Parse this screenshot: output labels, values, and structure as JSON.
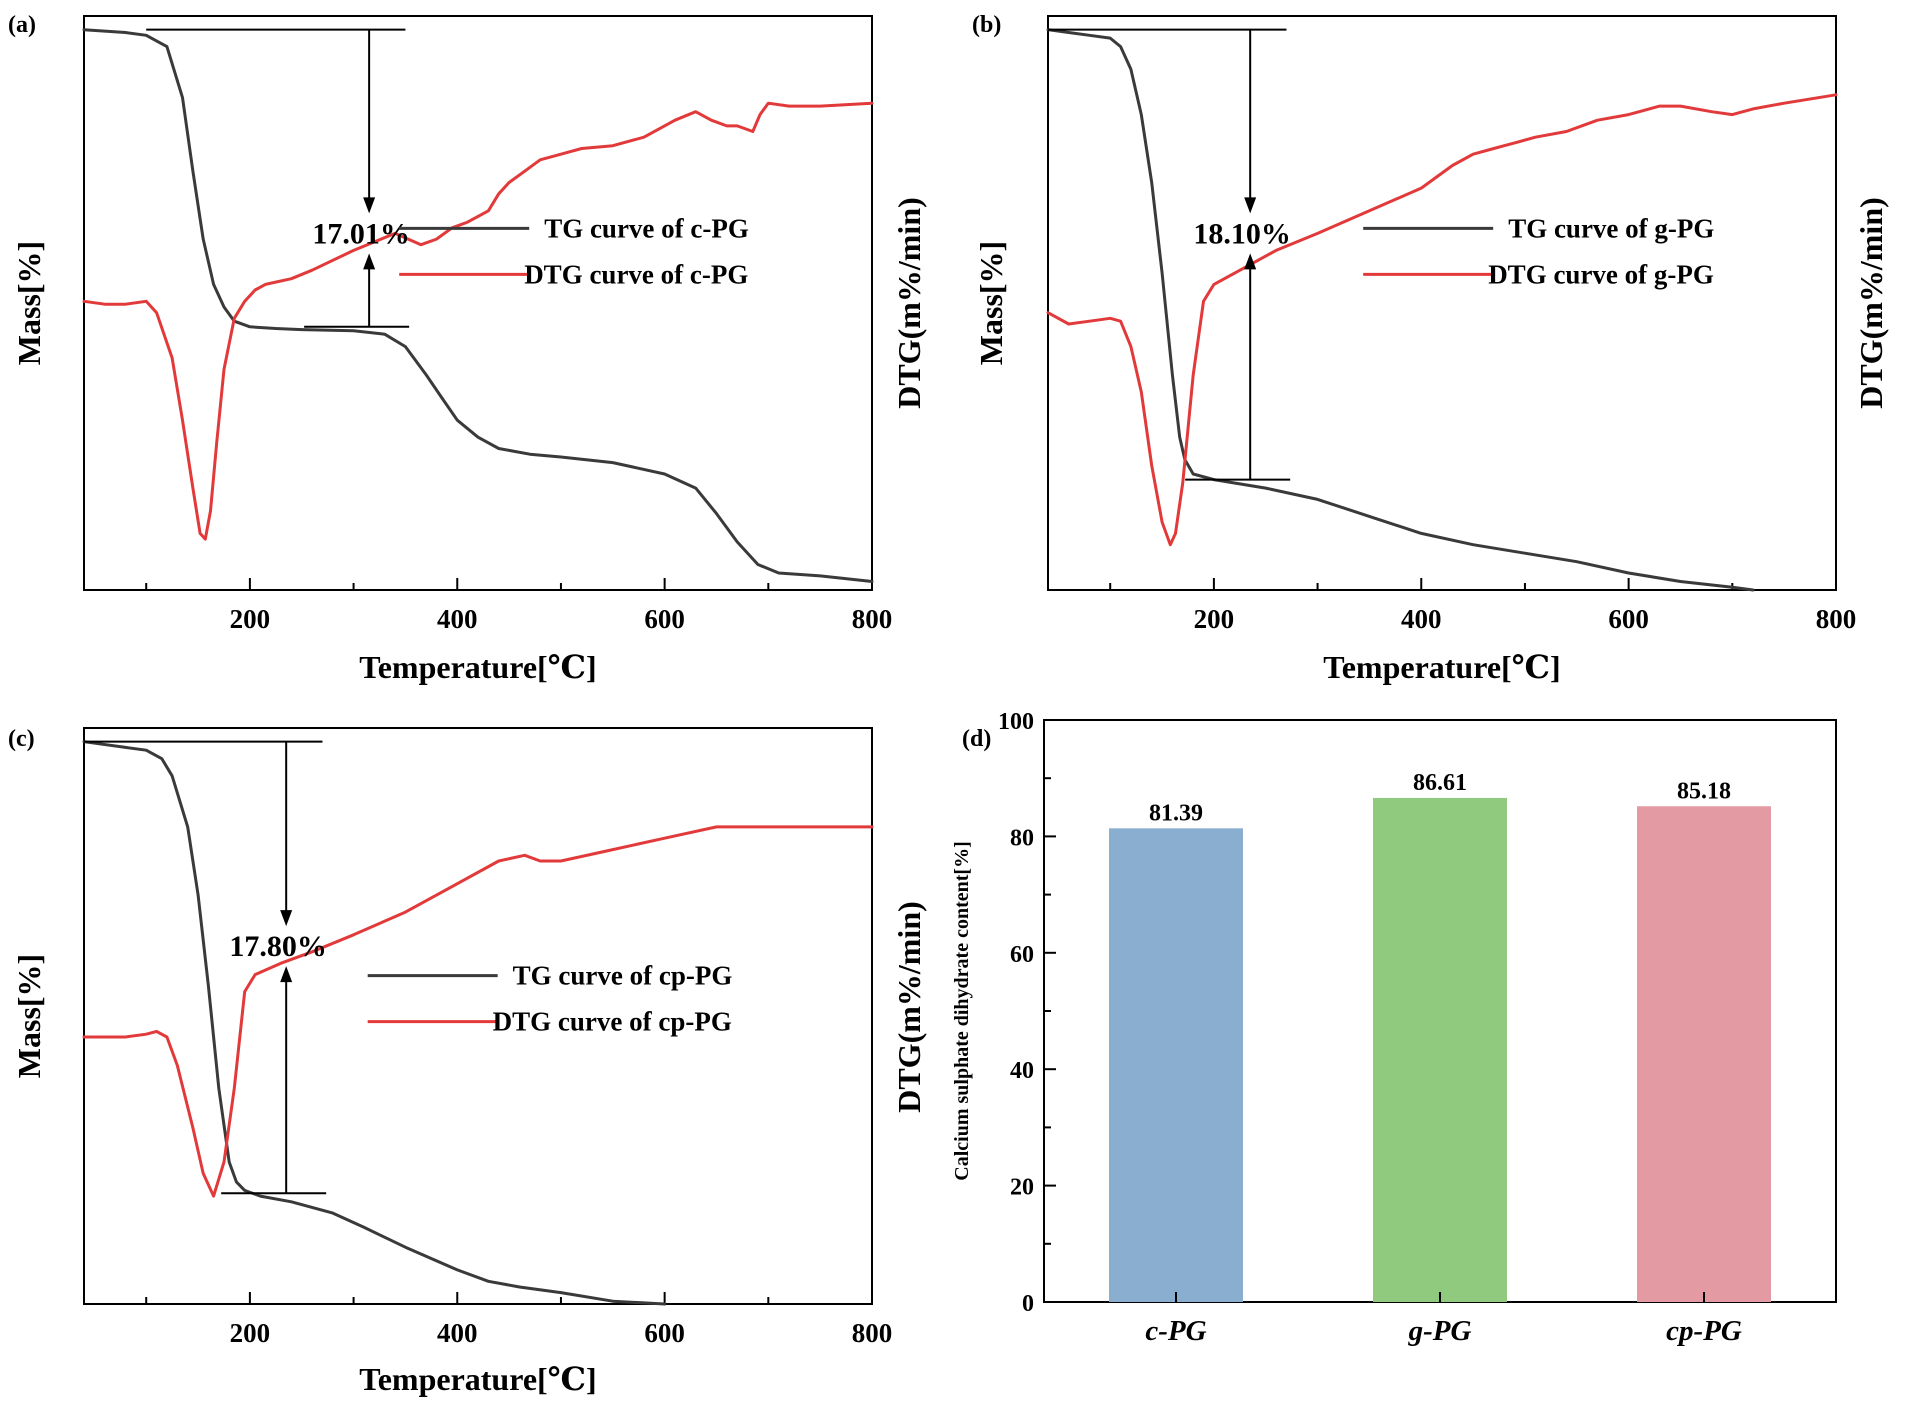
{
  "colors": {
    "tg": "#3a3a3a",
    "dtg": "#e23a3a",
    "bar_c": "#8aaed0",
    "bar_g": "#8fca7e",
    "bar_cp": "#e49aa3",
    "axis": "#000000"
  },
  "chart_data": [
    {
      "panel": "(a)",
      "type": "line",
      "xlabel": "Temperature[℃]",
      "ylabel_left": "Mass[%]",
      "ylabel_right": "DTG(m%/min)",
      "xlim": [
        40,
        800
      ],
      "ylim": [
        0,
        1
      ],
      "x_ticks": [
        200,
        400,
        600,
        800
      ],
      "annotation": "17.01%",
      "step": {
        "x": 315,
        "y_top": 0.99,
        "y_bottom": 0.465,
        "label_y": 0.63,
        "line_start": 100,
        "line_end": 350
      },
      "series": [
        {
          "name": "TG curve of c-PG",
          "color": "tg",
          "x": [
            40,
            80,
            100,
            120,
            135,
            145,
            155,
            165,
            175,
            185,
            200,
            225,
            250,
            300,
            330,
            350,
            370,
            385,
            400,
            420,
            440,
            470,
            500,
            550,
            600,
            630,
            650,
            670,
            690,
            710,
            750,
            800
          ],
          "y": [
            0.99,
            0.985,
            0.98,
            0.96,
            0.87,
            0.74,
            0.62,
            0.54,
            0.5,
            0.475,
            0.465,
            0.462,
            0.46,
            0.458,
            0.452,
            0.43,
            0.38,
            0.34,
            0.3,
            0.27,
            0.25,
            0.24,
            0.235,
            0.225,
            0.205,
            0.18,
            0.135,
            0.085,
            0.045,
            0.03,
            0.025,
            0.015
          ]
        },
        {
          "name": "DTG curve of c-PG",
          "color": "dtg",
          "x": [
            40,
            60,
            80,
            100,
            110,
            125,
            135,
            145,
            152,
            157,
            162,
            168,
            175,
            185,
            195,
            205,
            215,
            240,
            260,
            300,
            340,
            365,
            380,
            395,
            410,
            430,
            440,
            450,
            465,
            480,
            500,
            520,
            550,
            580,
            610,
            630,
            645,
            660,
            670,
            685,
            692,
            700,
            720,
            750,
            800
          ],
          "y": [
            0.51,
            0.505,
            0.505,
            0.51,
            0.49,
            0.41,
            0.3,
            0.18,
            0.1,
            0.09,
            0.14,
            0.26,
            0.39,
            0.48,
            0.51,
            0.53,
            0.54,
            0.55,
            0.565,
            0.6,
            0.63,
            0.61,
            0.62,
            0.64,
            0.65,
            0.67,
            0.7,
            0.72,
            0.74,
            0.76,
            0.77,
            0.78,
            0.785,
            0.8,
            0.83,
            0.845,
            0.83,
            0.82,
            0.82,
            0.81,
            0.84,
            0.86,
            0.855,
            0.855,
            0.86
          ]
        }
      ]
    },
    {
      "panel": "(b)",
      "type": "line",
      "xlabel": "Temperature[℃]",
      "ylabel_left": "Mass[%]",
      "ylabel_right": "DTG(m%/min)",
      "xlim": [
        40,
        800
      ],
      "ylim": [
        0,
        1
      ],
      "x_ticks": [
        200,
        400,
        600,
        800
      ],
      "annotation": "18.10%",
      "step": {
        "x": 235,
        "y_top": 0.99,
        "y_bottom": 0.195,
        "label_y": 0.63,
        "line_start": 40,
        "line_end": 270
      },
      "series": [
        {
          "name": "TG curve of g-PG",
          "color": "tg",
          "x": [
            40,
            60,
            80,
            100,
            110,
            120,
            130,
            140,
            150,
            160,
            167,
            172,
            180,
            200,
            250,
            300,
            350,
            400,
            450,
            500,
            550,
            600,
            650,
            700,
            720
          ],
          "y": [
            0.99,
            0.985,
            0.98,
            0.975,
            0.96,
            0.92,
            0.84,
            0.72,
            0.56,
            0.38,
            0.27,
            0.23,
            0.205,
            0.195,
            0.18,
            0.16,
            0.13,
            0.1,
            0.08,
            0.065,
            0.05,
            0.03,
            0.015,
            0.005,
            0.0
          ]
        },
        {
          "name": "DTG curve of g-PG",
          "color": "dtg",
          "x": [
            40,
            60,
            80,
            100,
            110,
            120,
            130,
            140,
            150,
            158,
            163,
            170,
            180,
            190,
            200,
            230,
            260,
            300,
            350,
            400,
            430,
            450,
            470,
            480,
            490,
            510,
            540,
            570,
            600,
            630,
            650,
            680,
            700,
            720,
            750,
            800
          ],
          "y": [
            0.49,
            0.47,
            0.475,
            0.48,
            0.475,
            0.43,
            0.35,
            0.22,
            0.12,
            0.08,
            0.1,
            0.19,
            0.38,
            0.51,
            0.54,
            0.57,
            0.6,
            0.63,
            0.67,
            0.71,
            0.75,
            0.77,
            0.78,
            0.785,
            0.79,
            0.8,
            0.81,
            0.83,
            0.84,
            0.855,
            0.855,
            0.845,
            0.84,
            0.85,
            0.86,
            0.875
          ]
        }
      ]
    },
    {
      "panel": "(c)",
      "type": "line",
      "xlabel": "Temperature[℃]",
      "ylabel_left": "Mass[%]",
      "ylabel_right": "DTG(m%/min)",
      "xlim": [
        40,
        800
      ],
      "ylim": [
        0,
        1
      ],
      "x_ticks": [
        200,
        400,
        600,
        800
      ],
      "annotation": "17.80%",
      "step": {
        "x": 235,
        "y_top": 0.99,
        "y_bottom": 0.195,
        "label_y": 0.63,
        "line_start": 40,
        "line_end": 270
      },
      "series": [
        {
          "name": "TG curve of cp-PG",
          "color": "tg",
          "x": [
            40,
            80,
            100,
            115,
            125,
            140,
            150,
            160,
            170,
            180,
            187,
            195,
            210,
            240,
            280,
            310,
            350,
            400,
            430,
            460,
            500,
            550,
            600
          ],
          "y": [
            0.99,
            0.98,
            0.975,
            0.96,
            0.93,
            0.84,
            0.72,
            0.56,
            0.38,
            0.25,
            0.215,
            0.2,
            0.19,
            0.18,
            0.16,
            0.135,
            0.1,
            0.06,
            0.04,
            0.03,
            0.02,
            0.005,
            0.0
          ]
        },
        {
          "name": "DTG curve of cp-PG",
          "color": "dtg",
          "x": [
            40,
            60,
            80,
            100,
            110,
            120,
            130,
            145,
            155,
            165,
            175,
            185,
            195,
            205,
            230,
            260,
            300,
            350,
            400,
            440,
            465,
            480,
            500,
            550,
            600,
            650,
            690,
            720,
            800
          ],
          "y": [
            0.47,
            0.47,
            0.47,
            0.475,
            0.48,
            0.47,
            0.42,
            0.31,
            0.23,
            0.19,
            0.25,
            0.38,
            0.55,
            0.58,
            0.6,
            0.62,
            0.65,
            0.69,
            0.74,
            0.78,
            0.79,
            0.78,
            0.78,
            0.8,
            0.82,
            0.84,
            0.84,
            0.84,
            0.84
          ]
        }
      ]
    },
    {
      "panel": "(d)",
      "type": "bar",
      "ylabel_outer": "DTG(m%/min)",
      "ylabel": "Calcium sulphate dihydrate content[%]",
      "ylim": [
        0,
        100
      ],
      "y_ticks": [
        0,
        20,
        40,
        60,
        80,
        100
      ],
      "categories": [
        "c-PG",
        "g-PG",
        "cp-PG"
      ],
      "values": [
        81.39,
        86.61,
        85.18
      ],
      "value_labels": [
        "81.39",
        "86.61",
        "85.18"
      ],
      "bar_colors": [
        "bar_c",
        "bar_g",
        "bar_cp"
      ]
    }
  ]
}
